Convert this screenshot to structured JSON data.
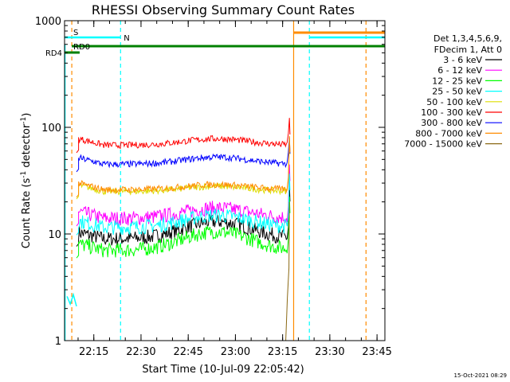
{
  "chart_data": {
    "type": "line",
    "title": "RHESSI Observing Summary Count Rates",
    "xlabel": "Start Time (10-Jul-09 22:05:42)",
    "ylabel_main": "Count Rate (s",
    "ylabel_sup1": "-1",
    "ylabel_mid": " detector",
    "ylabel_sup2": "-1",
    "ylabel_end": ")",
    "y_scale": "log",
    "ylim": [
      1,
      1000
    ],
    "xlim": [
      "22:05:42",
      "23:47:30"
    ],
    "x_ticks": [
      "22:15",
      "22:30",
      "22:45",
      "23:00",
      "23:15",
      "23:30",
      "23:45"
    ],
    "y_ticks": [
      "1",
      "10",
      "100",
      "1000"
    ],
    "timestamp": "15-Oct-2021 08:29",
    "legend_header": [
      "Det 1,3,4,5,6,9,",
      "FDecim 1, Att 0"
    ],
    "legend_position": "right",
    "flag_labels": {
      "saa": "S",
      "night": "N",
      "rd4": "RD4",
      "rd0": "RD0"
    },
    "series": [
      {
        "name": "3 - 6 keV",
        "color": "#000000",
        "base": 9.0,
        "bump": 1.45
      },
      {
        "name": "6 - 12 keV",
        "color": "#ff00ff",
        "base": 14.0,
        "bump": 1.25
      },
      {
        "name": "12 - 25 keV",
        "color": "#00ff00",
        "base": 7.0,
        "bump": 1.5
      },
      {
        "name": "25 - 50 keV",
        "color": "#00ffff",
        "base": 11.5,
        "bump": 1.3
      },
      {
        "name": "50 - 100 keV",
        "color": "#dddd00",
        "base": 25.0,
        "bump": 1.12
      },
      {
        "name": "100 - 300 keV",
        "color": "#ff0000",
        "base": 68.0,
        "bump": 1.15
      },
      {
        "name": "300 - 800 keV",
        "color": "#0000ff",
        "base": 45.0,
        "bump": 1.17
      },
      {
        "name": "800 - 7000 keV",
        "color": "#ff8c00",
        "base": 26.0,
        "bump": 1.12
      },
      {
        "name": "7000 - 15000 keV",
        "color": "#8b6914",
        "base": null,
        "bump": null
      }
    ],
    "event_lines": [
      {
        "time": "22:08:00",
        "color": "#ff8c00"
      },
      {
        "time": "22:23:30",
        "color": "#00ffff"
      },
      {
        "time": "23:18:30",
        "color": "#ff8c00"
      },
      {
        "time": "23:23:30",
        "color": "#00ffff"
      },
      {
        "time": "23:41:30",
        "color": "#ff8c00"
      }
    ]
  }
}
